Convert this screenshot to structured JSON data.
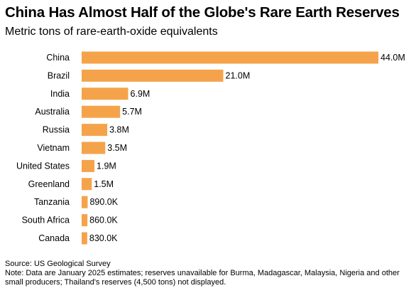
{
  "header": {
    "title": "China Has Almost Half of the Globe's Rare Earth Reserves",
    "subtitle": "Metric tons of rare-earth-oxide equivalents"
  },
  "footer": {
    "source": "Source: US Geological Survey",
    "note": "Note: Data are January 2025 estimates; reserves unavailable for Burma, Madagascar, Malaysia, Nigeria and other small producers; Thailand's reserves (4,500 tons) not displayed."
  },
  "colors": {
    "bar": "#F5A34B",
    "text": "#000000"
  },
  "chart_data": {
    "type": "bar",
    "orientation": "horizontal",
    "title": "China Has Almost Half of the Globe's Rare Earth Reserves",
    "subtitle": "Metric tons of rare-earth-oxide equivalents",
    "xlabel": "",
    "ylabel": "",
    "categories": [
      "China",
      "Brazil",
      "India",
      "Australia",
      "Russia",
      "Vietnam",
      "United States",
      "Greenland",
      "Tanzania",
      "South Africa",
      "Canada"
    ],
    "values": [
      44000000,
      21000000,
      6900000,
      5700000,
      3800000,
      3500000,
      1900000,
      1500000,
      890000,
      860000,
      830000
    ],
    "value_labels": [
      "44.0M",
      "21.0M",
      "6.9M",
      "5.7M",
      "3.8M",
      "3.5M",
      "1.9M",
      "1.5M",
      "890.0K",
      "860.0K",
      "830.0K"
    ],
    "xlim": [
      0,
      44000000
    ],
    "grid": false,
    "legend": "none"
  }
}
